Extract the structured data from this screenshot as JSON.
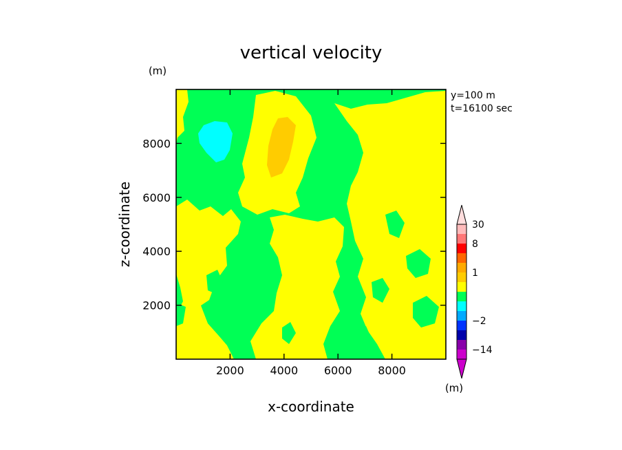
{
  "chart_data": {
    "type": "heatmap",
    "title": "vertical velocity",
    "xlabel": "x-coordinate",
    "ylabel": "z-coordinate",
    "x_unit": "(m)",
    "y_unit": "(m)",
    "info": [
      "y=100 m",
      "t=16100 sec"
    ],
    "xlim": [
      0,
      10000
    ],
    "ylim": [
      0,
      10000
    ],
    "xticks": [
      2000,
      4000,
      6000,
      8000
    ],
    "yticks": [
      2000,
      4000,
      6000,
      8000
    ],
    "colorbar": {
      "unit": "(m)",
      "tick_labels": [
        "30",
        "8",
        "1",
        "-2",
        "-14"
      ],
      "tick_levels": [
        30,
        8,
        1,
        -2,
        -14
      ],
      "levels": [
        -30,
        -14,
        -8,
        -4,
        -2,
        -1,
        -0.5,
        0,
        0.5,
        1,
        2,
        4,
        8,
        14,
        30
      ],
      "colors": [
        "#cc00cc",
        "#8800aa",
        "#0000aa",
        "#0033ff",
        "#00aaff",
        "#00ffff",
        "#00ff55",
        "#ffff00",
        "#ffcc00",
        "#ffaa00",
        "#ff6600",
        "#ff0000",
        "#ff7777",
        "#ffbbbb"
      ],
      "extend_min_color": "#cc00cc",
      "extend_max_color": "#ffdddd"
    },
    "field_colors": {
      "background": "#00ff55",
      "weak_updraft": "#ffff00",
      "updraft_core": "#ffcc00",
      "downdraft": "#00ffff"
    }
  }
}
